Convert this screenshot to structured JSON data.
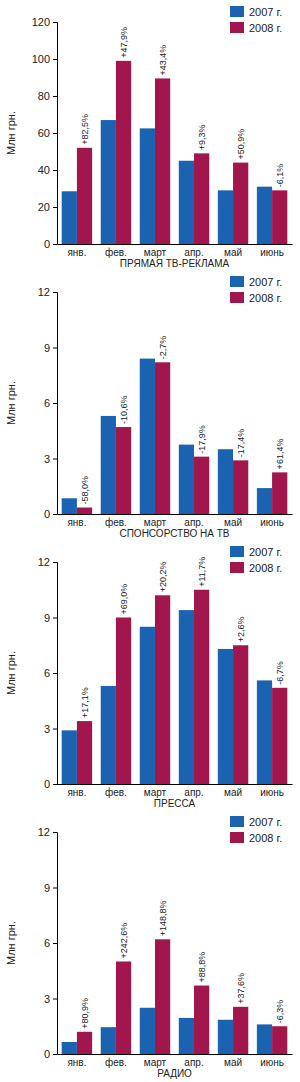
{
  "chart_data": [
    {
      "type": "bar",
      "title": "ПРЯМАЯ ТВ-РЕКЛАМА",
      "y_label": "Млн грн.",
      "categories": [
        "янв.",
        "фев.",
        "март",
        "апр.",
        "май",
        "июнь"
      ],
      "series": [
        {
          "name": "2007 г.",
          "color": "#1b63b0",
          "values": [
            28.5,
            67,
            62.5,
            45,
            29,
            31
          ]
        },
        {
          "name": "2008 г.",
          "color": "#a1164c",
          "values": [
            52,
            99,
            89.5,
            49,
            44,
            29
          ]
        }
      ],
      "annotations": [
        "+82,5%",
        "+47,9%",
        "+43,4%",
        "+9,3%",
        "+50,9%",
        "-6,1%"
      ],
      "ylim": [
        0,
        120
      ],
      "yticks": [
        0,
        20,
        40,
        60,
        80,
        100,
        120
      ],
      "grid": false,
      "legend": "upper right"
    },
    {
      "type": "bar",
      "title": "СПОНСОРСТВО НА ТВ",
      "y_label": "Млн грн.",
      "categories": [
        "янв.",
        "фев.",
        "март",
        "апр.",
        "май",
        "июнь"
      ],
      "series": [
        {
          "name": "2007 г.",
          "color": "#1b63b0",
          "values": [
            0.85,
            5.3,
            8.4,
            3.75,
            3.5,
            1.4
          ]
        },
        {
          "name": "2008 г.",
          "color": "#a1164c",
          "values": [
            0.35,
            4.7,
            8.2,
            3.1,
            2.9,
            2.25
          ]
        }
      ],
      "annotations": [
        "-58,0%",
        "-10,6%",
        "-2,7%",
        "-17,9%",
        "-17,4%",
        "+61,4%"
      ],
      "ylim": [
        0,
        12
      ],
      "yticks": [
        0,
        3,
        6,
        9,
        12
      ],
      "grid": false,
      "legend": "upper right"
    },
    {
      "type": "bar",
      "title": "ПРЕССА",
      "y_label": "Млн грн.",
      "categories": [
        "янв.",
        "фев.",
        "март",
        "апр.",
        "май",
        "июнь"
      ],
      "series": [
        {
          "name": "2007 г.",
          "color": "#1b63b0",
          "values": [
            2.9,
            5.3,
            8.5,
            9.4,
            7.3,
            5.6
          ]
        },
        {
          "name": "2008 г.",
          "color": "#a1164c",
          "values": [
            3.4,
            9.0,
            10.2,
            10.5,
            7.5,
            5.2
          ]
        }
      ],
      "annotations": [
        "+17,1%",
        "+69,0%",
        "+20,2%",
        "+11,7%",
        "+2,6%",
        "-6,7%"
      ],
      "ylim": [
        0,
        12
      ],
      "yticks": [
        0,
        3,
        6,
        9,
        12
      ],
      "grid": false,
      "legend": "upper right"
    },
    {
      "type": "bar",
      "title": "РАДИО",
      "y_label": "Млн грн.",
      "categories": [
        "янв.",
        "фев.",
        "март",
        "апр.",
        "май",
        "июнь"
      ],
      "series": [
        {
          "name": "2007 г.",
          "color": "#1b63b0",
          "values": [
            0.65,
            1.45,
            2.5,
            1.95,
            1.85,
            1.6
          ]
        },
        {
          "name": "2008 г.",
          "color": "#a1164c",
          "values": [
            1.2,
            5.0,
            6.2,
            3.7,
            2.55,
            1.5
          ]
        }
      ],
      "annotations": [
        "+80,9%",
        "+242,6%",
        "+148,8%",
        "+88,8%",
        "+37,6%",
        "-6,3%"
      ],
      "ylim": [
        0,
        12
      ],
      "yticks": [
        0,
        3,
        6,
        9,
        12
      ],
      "grid": false,
      "legend": "upper right"
    }
  ]
}
